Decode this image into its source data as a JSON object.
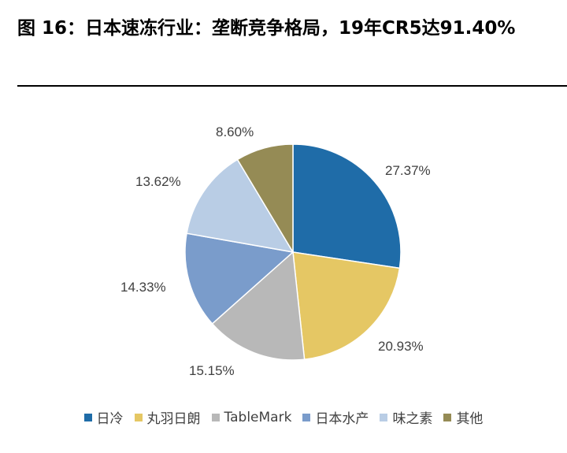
{
  "title": "图 16：日本速冻行业：垄断竞争格局，19年CR5达91.40%",
  "chart_data": {
    "type": "pie",
    "slices": [
      {
        "name": "日冷",
        "value": 27.37,
        "label": "27.37%",
        "color": "#1F6CA8"
      },
      {
        "name": "丸羽日朗",
        "value": 20.93,
        "label": "20.93%",
        "color": "#E5C764"
      },
      {
        "name": "TableMark",
        "value": 15.15,
        "label": "15.15%",
        "color": "#B8B8B8"
      },
      {
        "name": "日本水产",
        "value": 14.33,
        "label": "14.33%",
        "color": "#7A9CCB"
      },
      {
        "name": "味之素",
        "value": 13.62,
        "label": "13.62%",
        "color": "#B9CDE5"
      },
      {
        "name": "其他",
        "value": 8.6,
        "label": "8.60%",
        "color": "#958B55"
      }
    ],
    "legend_position": "bottom"
  }
}
